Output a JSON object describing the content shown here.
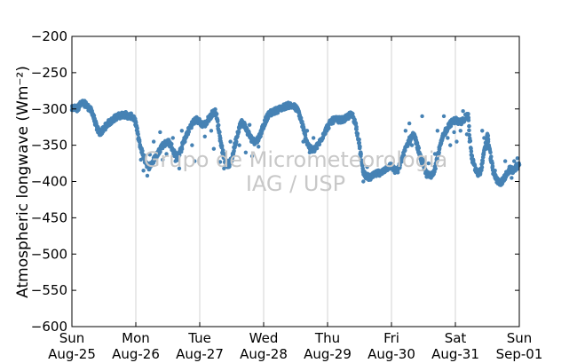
{
  "chart_data": {
    "type": "scatter",
    "title": "",
    "ylabel": "Atmospheric longwave (Wm⁻²)",
    "xlabel": "",
    "ylim": [
      -600,
      -200
    ],
    "yticks": [
      -200,
      -250,
      -300,
      -350,
      -400,
      -450,
      -500,
      -550,
      -600
    ],
    "xlim": [
      "2013-08-25",
      "2013-09-01"
    ],
    "xticks": [
      {
        "day": "Sun",
        "date": "Aug-25"
      },
      {
        "day": "Mon",
        "date": "Aug-26"
      },
      {
        "day": "Tue",
        "date": "Aug-27"
      },
      {
        "day": "Wed",
        "date": "Aug-28"
      },
      {
        "day": "Thu",
        "date": "Aug-29"
      },
      {
        "day": "Fri",
        "date": "Aug-30"
      },
      {
        "day": "Sat",
        "date": "Aug-31"
      },
      {
        "day": "Sun",
        "date": "Sep-01"
      }
    ],
    "grid": "vertical",
    "marker_color": "#4682b4",
    "series": [
      {
        "name": "",
        "x_unit": "days",
        "points": [
          [
            0.0,
            -300
          ],
          [
            0.04,
            -298
          ],
          [
            0.08,
            -300
          ],
          [
            0.12,
            -295
          ],
          [
            0.16,
            -292
          ],
          [
            0.2,
            -293
          ],
          [
            0.24,
            -296
          ],
          [
            0.28,
            -300
          ],
          [
            0.32,
            -305
          ],
          [
            0.36,
            -318
          ],
          [
            0.4,
            -328
          ],
          [
            0.44,
            -333
          ],
          [
            0.48,
            -330
          ],
          [
            0.52,
            -325
          ],
          [
            0.56,
            -320
          ],
          [
            0.6,
            -318
          ],
          [
            0.64,
            -315
          ],
          [
            0.68,
            -312
          ],
          [
            0.72,
            -310
          ],
          [
            0.76,
            -309
          ],
          [
            0.8,
            -308
          ],
          [
            0.84,
            -308
          ],
          [
            0.88,
            -310
          ],
          [
            0.92,
            -310
          ],
          [
            0.96,
            -312
          ],
          [
            1.0,
            -320
          ],
          [
            1.05,
            -345
          ],
          [
            1.1,
            -360
          ],
          [
            1.15,
            -372
          ],
          [
            1.2,
            -380
          ],
          [
            1.25,
            -375
          ],
          [
            1.3,
            -368
          ],
          [
            1.35,
            -360
          ],
          [
            1.4,
            -352
          ],
          [
            1.45,
            -348
          ],
          [
            1.5,
            -345
          ],
          [
            1.55,
            -350
          ],
          [
            1.6,
            -360
          ],
          [
            1.65,
            -368
          ],
          [
            1.7,
            -358
          ],
          [
            1.75,
            -345
          ],
          [
            1.8,
            -335
          ],
          [
            1.85,
            -325
          ],
          [
            1.9,
            -318
          ],
          [
            1.95,
            -315
          ],
          [
            2.0,
            -318
          ],
          [
            2.05,
            -322
          ],
          [
            2.1,
            -320
          ],
          [
            2.15,
            -312
          ],
          [
            2.2,
            -306
          ],
          [
            2.25,
            -304
          ],
          [
            2.3,
            -330
          ],
          [
            2.35,
            -355
          ],
          [
            2.4,
            -372
          ],
          [
            2.45,
            -378
          ],
          [
            2.5,
            -370
          ],
          [
            2.55,
            -350
          ],
          [
            2.6,
            -330
          ],
          [
            2.65,
            -318
          ],
          [
            2.7,
            -322
          ],
          [
            2.75,
            -332
          ],
          [
            2.8,
            -340
          ],
          [
            2.85,
            -345
          ],
          [
            2.9,
            -343
          ],
          [
            2.95,
            -335
          ],
          [
            3.0,
            -322
          ],
          [
            3.05,
            -312
          ],
          [
            3.1,
            -306
          ],
          [
            3.15,
            -304
          ],
          [
            3.2,
            -302
          ],
          [
            3.25,
            -300
          ],
          [
            3.3,
            -298
          ],
          [
            3.35,
            -296
          ],
          [
            3.4,
            -295
          ],
          [
            3.45,
            -296
          ],
          [
            3.5,
            -298
          ],
          [
            3.55,
            -305
          ],
          [
            3.6,
            -320
          ],
          [
            3.65,
            -338
          ],
          [
            3.7,
            -350
          ],
          [
            3.75,
            -357
          ],
          [
            3.8,
            -355
          ],
          [
            3.85,
            -350
          ],
          [
            3.9,
            -342
          ],
          [
            3.95,
            -332
          ],
          [
            4.0,
            -325
          ],
          [
            4.05,
            -318
          ],
          [
            4.1,
            -315
          ],
          [
            4.15,
            -315
          ],
          [
            4.2,
            -315
          ],
          [
            4.25,
            -315
          ],
          [
            4.3,
            -312
          ],
          [
            4.35,
            -308
          ],
          [
            4.4,
            -310
          ],
          [
            4.45,
            -325
          ],
          [
            4.5,
            -350
          ],
          [
            4.55,
            -385
          ],
          [
            4.6,
            -392
          ],
          [
            4.65,
            -395
          ],
          [
            4.7,
            -393
          ],
          [
            4.75,
            -390
          ],
          [
            4.8,
            -388
          ],
          [
            4.85,
            -388
          ],
          [
            4.9,
            -383
          ],
          [
            4.95,
            -380
          ],
          [
            5.0,
            -378
          ],
          [
            5.05,
            -385
          ],
          [
            5.1,
            -385
          ],
          [
            5.15,
            -372
          ],
          [
            5.2,
            -360
          ],
          [
            5.25,
            -348
          ],
          [
            5.3,
            -340
          ],
          [
            5.35,
            -335
          ],
          [
            5.4,
            -350
          ],
          [
            5.45,
            -365
          ],
          [
            5.5,
            -380
          ],
          [
            5.55,
            -390
          ],
          [
            5.6,
            -392
          ],
          [
            5.65,
            -388
          ],
          [
            5.7,
            -375
          ],
          [
            5.75,
            -355
          ],
          [
            5.8,
            -340
          ],
          [
            5.85,
            -330
          ],
          [
            5.9,
            -322
          ],
          [
            5.95,
            -318
          ],
          [
            6.0,
            -315
          ],
          [
            6.05,
            -318
          ],
          [
            6.1,
            -318
          ],
          [
            6.15,
            -312
          ],
          [
            6.2,
            -310
          ],
          [
            6.25,
            -365
          ],
          [
            6.3,
            -380
          ],
          [
            6.35,
            -390
          ],
          [
            6.4,
            -385
          ],
          [
            6.45,
            -360
          ],
          [
            6.5,
            -335
          ],
          [
            6.55,
            -365
          ],
          [
            6.6,
            -390
          ],
          [
            6.65,
            -398
          ],
          [
            6.7,
            -402
          ],
          [
            6.75,
            -398
          ],
          [
            6.8,
            -390
          ],
          [
            6.85,
            -383
          ],
          [
            6.9,
            -385
          ],
          [
            6.95,
            -380
          ],
          [
            7.0,
            -377
          ]
        ],
        "scatter_points": [
          [
            1.08,
            -370
          ],
          [
            1.12,
            -385
          ],
          [
            1.18,
            -392
          ],
          [
            1.22,
            -363
          ],
          [
            1.28,
            -345
          ],
          [
            1.38,
            -332
          ],
          [
            1.42,
            -370
          ],
          [
            1.48,
            -362
          ],
          [
            1.58,
            -340
          ],
          [
            1.62,
            -372
          ],
          [
            1.68,
            -382
          ],
          [
            1.72,
            -330
          ],
          [
            1.88,
            -350
          ],
          [
            1.92,
            -372
          ],
          [
            2.08,
            -338
          ],
          [
            2.18,
            -330
          ],
          [
            2.22,
            -355
          ],
          [
            2.28,
            -315
          ],
          [
            2.32,
            -373
          ],
          [
            2.38,
            -382
          ],
          [
            2.48,
            -345
          ],
          [
            2.52,
            -365
          ],
          [
            2.62,
            -350
          ],
          [
            2.72,
            -360
          ],
          [
            2.78,
            -322
          ],
          [
            2.82,
            -365
          ],
          [
            2.92,
            -352
          ],
          [
            3.62,
            -345
          ],
          [
            3.68,
            -330
          ],
          [
            3.72,
            -360
          ],
          [
            3.78,
            -340
          ],
          [
            4.52,
            -365
          ],
          [
            4.56,
            -400
          ],
          [
            4.62,
            -380
          ],
          [
            5.22,
            -330
          ],
          [
            5.28,
            -320
          ],
          [
            5.32,
            -350
          ],
          [
            5.38,
            -340
          ],
          [
            5.42,
            -360
          ],
          [
            5.48,
            -310
          ],
          [
            5.52,
            -370
          ],
          [
            5.58,
            -375
          ],
          [
            5.62,
            -395
          ],
          [
            5.68,
            -362
          ],
          [
            5.72,
            -330
          ],
          [
            5.78,
            -345
          ],
          [
            5.82,
            -310
          ],
          [
            5.88,
            -340
          ],
          [
            5.92,
            -350
          ],
          [
            5.98,
            -332
          ],
          [
            6.02,
            -345
          ],
          [
            6.08,
            -330
          ],
          [
            6.12,
            -303
          ],
          [
            6.18,
            -335
          ],
          [
            6.22,
            -345
          ],
          [
            6.28,
            -370
          ],
          [
            6.42,
            -330
          ],
          [
            6.45,
            -340
          ],
          [
            6.48,
            -355
          ],
          [
            6.58,
            -375
          ],
          [
            6.62,
            -385
          ],
          [
            6.78,
            -372
          ],
          [
            6.88,
            -395
          ],
          [
            6.92,
            -372
          ],
          [
            6.97,
            -368
          ]
        ]
      }
    ],
    "annotation": [
      "Grupo de Micrometeorologia",
      "IAG / USP"
    ]
  }
}
